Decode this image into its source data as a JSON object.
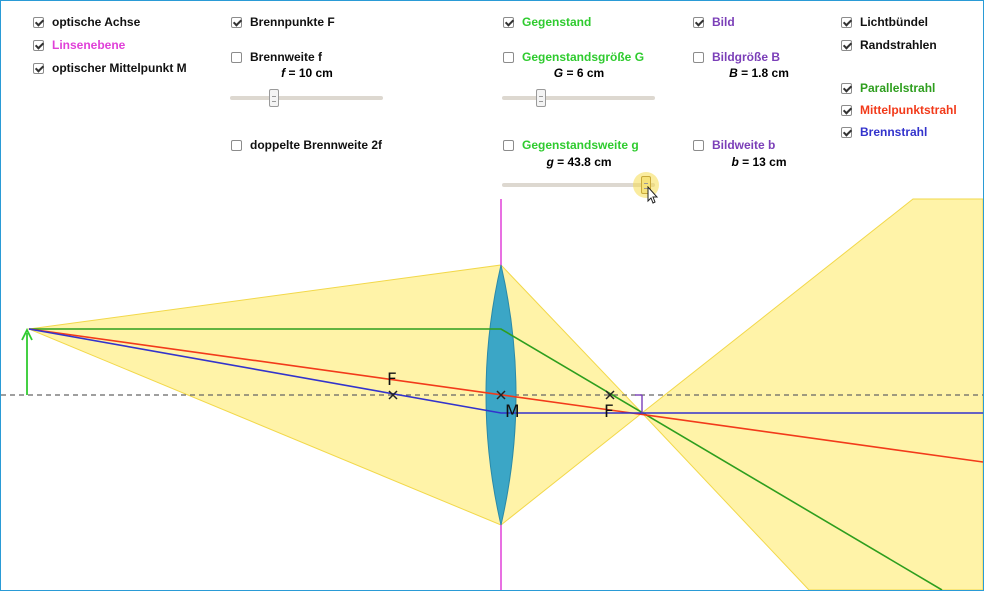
{
  "colors": {
    "pink": "#e040d8",
    "green": "#2fcb2f",
    "dark_green": "#2e9e1e",
    "red": "#f23a1a",
    "blue": "#3333cc",
    "purple": "#7b3fb8",
    "bundle_fill": "#fff3a8",
    "lens_fill": "#3ba6c6"
  },
  "controls": {
    "optical_axis": {
      "label": "optische Achse",
      "checked": true
    },
    "lens_plane": {
      "label": "Linsenebene",
      "checked": true
    },
    "optical_center": {
      "label": "optischer Mittelpunkt M",
      "checked": true
    },
    "focal_points": {
      "label": "Brennpunkte F",
      "checked": true
    },
    "focal_length": {
      "label": "Brennweite f",
      "checked": false,
      "symbol": "f",
      "value": "= 10 cm",
      "slider_fraction": 0.3
    },
    "double_focal": {
      "label": "doppelte Brennweite 2f",
      "checked": false
    },
    "object": {
      "label": "Gegenstand",
      "checked": true
    },
    "object_size": {
      "label": "Gegenstandsgröße G",
      "checked": false,
      "symbol": "G",
      "value": "= 6 cm",
      "slider_fraction": 0.26
    },
    "object_distance": {
      "label": "Gegenstandsweite g",
      "checked": false,
      "symbol": "g",
      "value": "= 43.8 cm",
      "slider_fraction": 0.95
    },
    "image": {
      "label": "Bild",
      "checked": true
    },
    "image_size": {
      "label": "Bildgröße B",
      "checked": false,
      "symbol": "B",
      "value": "= 1.8 cm"
    },
    "image_distance": {
      "label": "Bildweite b",
      "checked": false,
      "symbol": "b",
      "value": "= 13 cm"
    },
    "light_bundle": {
      "label": "Lichtbündel",
      "checked": true
    },
    "edge_rays": {
      "label": "Randstrahlen",
      "checked": true
    },
    "parallel_ray": {
      "label": "Parallelstrahl",
      "checked": true
    },
    "center_ray": {
      "label": "Mittelpunktstrahl",
      "checked": true
    },
    "focal_ray": {
      "label": "Brennstrahl",
      "checked": true
    }
  },
  "scene": {
    "focal_label": "F",
    "center_label": "M"
  }
}
